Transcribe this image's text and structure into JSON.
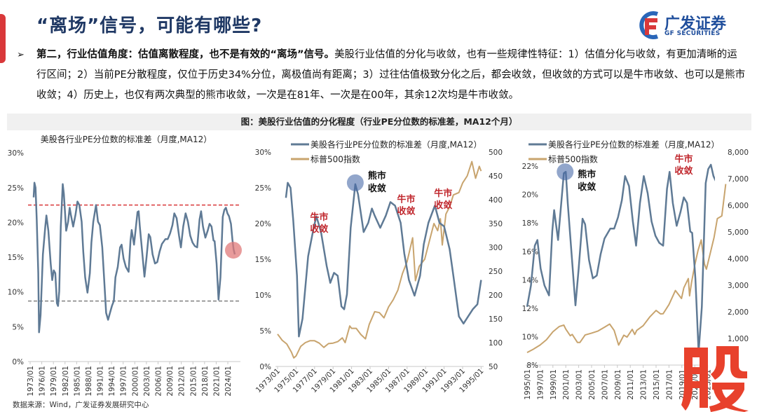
{
  "header": {
    "title": "“离场”信号，可能有哪些?",
    "logo_cn": "广发证券",
    "logo_en": "GF SECURITIES"
  },
  "body": {
    "bullet": "➢",
    "bold_lead": "第二，行业估值角度：估值离散程度，也不是有效的“离场”信号。",
    "text": "美股行业估值的分化与收敛，也有一些规律性特征：1）估值分化与收敛，有更加清晰的运行区间；2）当前PE分散程度，仅位于历史34%分位，离极值尚有距离；3）过往估值极致分化之后，都会收敛，但收敛的方式可以是牛市收敛、也可以是熊市收敛；4）历史上，也仅有两次典型的熊市收敛，一次是在81年、一次是在00年，其余12次均是牛市收敛。"
  },
  "caption": "图：美股行业估值的分化程度（行业PE分位数的标准差，MA12个月）",
  "source": "数据来源：Wind，广发证券发展研究中心",
  "watermark": "股",
  "colors": {
    "pe_line": "#5f7a95",
    "spx_line": "#c8a46e",
    "upper_band": "#d9383a",
    "lower_band": "#808080",
    "bull_label": "#c0272d",
    "bear_circle": "#4a6aa8",
    "current_marker": "#e07a7a",
    "title": "#1f3864"
  },
  "chart_data": [
    {
      "type": "line",
      "title": "美股各行业PE分位数的标准差（月度,MA12）",
      "xlim": [
        1973,
        2026
      ],
      "ylim": [
        0,
        30
      ],
      "y_ticks": [
        "0%",
        "5%",
        "10%",
        "15%",
        "20%",
        "25%",
        "30%"
      ],
      "x_ticks": [
        "1973/01",
        "1976/01",
        "1979/01",
        "1982/01",
        "1985/01",
        "1988/01",
        "1991/01",
        "1994/01",
        "1997/01",
        "2000/01",
        "2003/01",
        "2006/01",
        "2009/01",
        "2012/01",
        "2015/01",
        "2018/01",
        "2021/01",
        "2024/01"
      ],
      "reference_lines": [
        {
          "value": 22.5,
          "style": "dashed",
          "color": "red"
        },
        {
          "value": 8.7,
          "style": "dashed",
          "color": "gray"
        }
      ],
      "highlight": {
        "year": 2025.8,
        "value": 15.4,
        "marker": "current"
      },
      "series": [
        {
          "name": "美股各行业PE分位数的标准差（月度,MA12）",
          "points": [
            [
              1973.9,
              23.6
            ],
            [
              1974.1,
              25.7
            ],
            [
              1974.4,
              25.0
            ],
            [
              1974.7,
              20.4
            ],
            [
              1975.1,
              12.7
            ],
            [
              1975.3,
              4.2
            ],
            [
              1975.7,
              6.7
            ],
            [
              1976.3,
              15.4
            ],
            [
              1976.9,
              19.4
            ],
            [
              1977.2,
              21.0
            ],
            [
              1977.7,
              18.8
            ],
            [
              1978.3,
              14.1
            ],
            [
              1978.7,
              11.7
            ],
            [
              1979.1,
              13.1
            ],
            [
              1979.5,
              12.7
            ],
            [
              1979.9,
              8.4
            ],
            [
              1980.2,
              8.0
            ],
            [
              1980.5,
              10.1
            ],
            [
              1980.9,
              19.4
            ],
            [
              1981.4,
              25.5
            ],
            [
              1981.7,
              24.1
            ],
            [
              1982.3,
              18.8
            ],
            [
              1982.8,
              20.1
            ],
            [
              1983.2,
              22.1
            ],
            [
              1983.5,
              21.1
            ],
            [
              1984.1,
              19.4
            ],
            [
              1984.7,
              21.1
            ],
            [
              1985.2,
              23.0
            ],
            [
              1985.7,
              22.5
            ],
            [
              1986.3,
              20.1
            ],
            [
              1986.7,
              15.8
            ],
            [
              1987.2,
              12.1
            ],
            [
              1987.8,
              9.9
            ],
            [
              1988.4,
              12.7
            ],
            [
              1988.8,
              17.1
            ],
            [
              1989.3,
              20.1
            ],
            [
              1990.0,
              22.5
            ],
            [
              1990.5,
              20.1
            ],
            [
              1991.0,
              19.6
            ],
            [
              1991.6,
              16.4
            ],
            [
              1992.0,
              12.7
            ],
            [
              1992.6,
              7.0
            ],
            [
              1993.1,
              6.0
            ],
            [
              1993.6,
              7.0
            ],
            [
              1994.1,
              8.0
            ],
            [
              1994.6,
              8.7
            ],
            [
              1995.0,
              12.1
            ],
            [
              1995.6,
              13.6
            ],
            [
              1996.2,
              16.4
            ],
            [
              1996.6,
              16.8
            ],
            [
              1997.1,
              14.8
            ],
            [
              1997.7,
              13.6
            ],
            [
              1998.4,
              12.9
            ],
            [
              1998.9,
              17.4
            ],
            [
              1999.2,
              18.9
            ],
            [
              1999.8,
              16.8
            ],
            [
              2000.7,
              21.5
            ],
            [
              2001.0,
              21.6
            ],
            [
              2001.3,
              19.4
            ],
            [
              2001.9,
              15.8
            ],
            [
              2002.5,
              12.2
            ],
            [
              2003.0,
              14.8
            ],
            [
              2003.6,
              18.3
            ],
            [
              2004.0,
              17.9
            ],
            [
              2004.6,
              15.4
            ],
            [
              2005.2,
              14.1
            ],
            [
              2005.8,
              14.3
            ],
            [
              2006.4,
              15.8
            ],
            [
              2007.0,
              16.9
            ],
            [
              2007.9,
              17.6
            ],
            [
              2008.5,
              17.6
            ],
            [
              2009.1,
              18.4
            ],
            [
              2009.7,
              19.6
            ],
            [
              2010.2,
              21.3
            ],
            [
              2010.8,
              20.6
            ],
            [
              2011.4,
              18.1
            ],
            [
              2011.9,
              16.4
            ],
            [
              2012.5,
              19.4
            ],
            [
              2013.1,
              21.3
            ],
            [
              2013.7,
              20.1
            ],
            [
              2014.3,
              18.1
            ],
            [
              2014.9,
              17.1
            ],
            [
              2015.5,
              16.6
            ],
            [
              2016.1,
              16.4
            ],
            [
              2016.7,
              20.4
            ],
            [
              2017.1,
              21.6
            ],
            [
              2017.6,
              19.4
            ],
            [
              2018.2,
              17.8
            ],
            [
              2018.8,
              18.8
            ],
            [
              2019.3,
              19.8
            ],
            [
              2019.8,
              19.4
            ],
            [
              2020.3,
              17.4
            ],
            [
              2020.6,
              17.3
            ],
            [
              2021.1,
              14.1
            ],
            [
              2021.6,
              8.9
            ],
            [
              2022.1,
              12.1
            ],
            [
              2022.7,
              20.8
            ],
            [
              2023.1,
              21.8
            ],
            [
              2023.5,
              22.1
            ],
            [
              2023.9,
              21.3
            ],
            [
              2024.3,
              20.9
            ],
            [
              2024.8,
              19.8
            ],
            [
              2025.2,
              17.4
            ],
            [
              2025.5,
              16.1
            ],
            [
              2025.8,
              15.4
            ]
          ]
        }
      ]
    },
    {
      "type": "line",
      "xlim": [
        1973,
        1995
      ],
      "ylim": [
        0,
        30
      ],
      "y2lim": [
        50,
        500
      ],
      "y_ticks": [
        "0%",
        "5%",
        "10%",
        "15%",
        "20%",
        "25%",
        "30%"
      ],
      "y2_ticks": [
        "50",
        "100",
        "150",
        "200",
        "250",
        "300",
        "350",
        "400",
        "450",
        "500"
      ],
      "x_ticks": [
        "1973/01",
        "1975/01",
        "1977/01",
        "1979/01",
        "1981/01",
        "1983/01",
        "1985/01",
        "1987/01",
        "1989/01",
        "1991/01",
        "1993/01",
        "1995/01"
      ],
      "legend": [
        "美股各行业PE分位数的标准差（月度,MA12）",
        "标普500指数"
      ],
      "legend_position": "top",
      "series_left": "uses chart_data[0] series, 1973–1995",
      "series": [
        {
          "name": "标普500指数",
          "axis": "right",
          "points": [
            [
              1973.0,
              118
            ],
            [
              1973.5,
              105
            ],
            [
              1974.0,
              97
            ],
            [
              1974.5,
              80
            ],
            [
              1974.75,
              68
            ],
            [
              1975.0,
              72
            ],
            [
              1975.5,
              92
            ],
            [
              1976.0,
              100
            ],
            [
              1976.5,
              104
            ],
            [
              1977.0,
              104
            ],
            [
              1977.5,
              99
            ],
            [
              1978.0,
              90
            ],
            [
              1978.5,
              98
            ],
            [
              1979.0,
              99
            ],
            [
              1979.5,
              102
            ],
            [
              1980.0,
              110
            ],
            [
              1980.3,
              100
            ],
            [
              1980.8,
              135
            ],
            [
              1981.0,
              130
            ],
            [
              1981.5,
              130
            ],
            [
              1982.0,
              117
            ],
            [
              1982.5,
              108
            ],
            [
              1982.9,
              138
            ],
            [
              1983.5,
              165
            ],
            [
              1984.0,
              163
            ],
            [
              1984.5,
              152
            ],
            [
              1985.0,
              175
            ],
            [
              1985.5,
              190
            ],
            [
              1986.0,
              210
            ],
            [
              1986.5,
              245
            ],
            [
              1987.0,
              270
            ],
            [
              1987.6,
              320
            ],
            [
              1987.9,
              230
            ],
            [
              1988.3,
              260
            ],
            [
              1988.9,
              275
            ],
            [
              1989.5,
              320
            ],
            [
              1989.9,
              350
            ],
            [
              1990.3,
              335
            ],
            [
              1990.6,
              360
            ],
            [
              1990.8,
              305
            ],
            [
              1991.2,
              370
            ],
            [
              1991.6,
              385
            ],
            [
              1992.0,
              410
            ],
            [
              1992.6,
              415
            ],
            [
              1993.0,
              435
            ],
            [
              1993.5,
              450
            ],
            [
              1994.0,
              480
            ],
            [
              1994.4,
              445
            ],
            [
              1994.8,
              470
            ],
            [
              1995.0,
              460
            ]
          ]
        }
      ],
      "annotations": [
        {
          "text1": "熊市",
          "text2": "收敛",
          "kind": "bear",
          "year": 1981.4,
          "value": 25.7
        },
        {
          "text1": "牛市",
          "text2": "收敛",
          "kind": "bull",
          "year": 1977.5,
          "value": 20.5
        },
        {
          "text1": "牛市",
          "text2": "收敛",
          "kind": "bull",
          "year": 1986.9,
          "value": 23.0
        },
        {
          "text1": "牛市",
          "text2": "收敛",
          "kind": "bull",
          "year": 1990.9,
          "value": 23.8
        }
      ]
    },
    {
      "type": "line",
      "xlim": [
        1995,
        2026
      ],
      "ylim": [
        8,
        24
      ],
      "y2lim": [
        0,
        8000
      ],
      "y_ticks": [
        "8%",
        "10%",
        "12%",
        "14%",
        "16%",
        "18%",
        "20%",
        "22%"
      ],
      "y2_ticks": [
        "1,000",
        "2,000",
        "3,000",
        "4,000",
        "5,000",
        "6,000",
        "7,000",
        "8,000"
      ],
      "x_ticks": [
        "1995/01",
        "1997/01",
        "1999/01",
        "2001/01",
        "2003/01",
        "2005/01",
        "2007/01",
        "2009/01",
        "2011/01",
        "2013/01",
        "2015/01",
        "2017/01",
        "2019/01",
        "2021/01",
        "2023/01"
      ],
      "legend": [
        "美股各行业PE分位数的标准差（月度,MA12）",
        "标普500指数"
      ],
      "legend_position": "top",
      "series_left": "uses chart_data[0] series, 1995–2025",
      "series": [
        {
          "name": "标普500指数",
          "axis": "right",
          "points": [
            [
              1995.0,
              470
            ],
            [
              1996.0,
              600
            ],
            [
              1997.0,
              750
            ],
            [
              1998.0,
              950
            ],
            [
              1999.0,
              1250
            ],
            [
              2000.0,
              1450
            ],
            [
              2000.7,
              1500
            ],
            [
              2001.0,
              1350
            ],
            [
              2001.7,
              1100
            ],
            [
              2002.0,
              1150
            ],
            [
              2002.8,
              850
            ],
            [
              2003.2,
              850
            ],
            [
              2004.0,
              1130
            ],
            [
              2005.0,
              1200
            ],
            [
              2006.0,
              1280
            ],
            [
              2007.0,
              1420
            ],
            [
              2007.8,
              1540
            ],
            [
              2008.5,
              1300
            ],
            [
              2009.2,
              750
            ],
            [
              2010.0,
              1120
            ],
            [
              2010.5,
              1050
            ],
            [
              2011.3,
              1340
            ],
            [
              2011.7,
              1150
            ],
            [
              2012.0,
              1300
            ],
            [
              2013.0,
              1480
            ],
            [
              2014.0,
              1800
            ],
            [
              2015.0,
              2050
            ],
            [
              2015.7,
              1920
            ],
            [
              2016.1,
              1930
            ],
            [
              2017.0,
              2270
            ],
            [
              2018.0,
              2800
            ],
            [
              2018.95,
              2500
            ],
            [
              2019.3,
              2900
            ],
            [
              2020.0,
              3250
            ],
            [
              2020.2,
              2600
            ],
            [
              2020.5,
              3100
            ],
            [
              2021.0,
              3750
            ],
            [
              2021.5,
              4300
            ],
            [
              2022.0,
              4700
            ],
            [
              2022.5,
              3800
            ],
            [
              2022.8,
              3600
            ],
            [
              2023.3,
              4100
            ],
            [
              2024.0,
              4800
            ],
            [
              2024.5,
              5500
            ],
            [
              2025.2,
              5600
            ],
            [
              2025.5,
              6200
            ],
            [
              2025.8,
              6800
            ]
          ]
        }
      ],
      "annotations": [
        {
          "text1": "熊市",
          "text2": "收敛",
          "kind": "bear",
          "year": 2000.9,
          "value": 21.6
        },
        {
          "text1": "牛市",
          "text2": "收敛",
          "kind": "bull",
          "year": 2019.3,
          "value": 22.3
        }
      ]
    }
  ]
}
